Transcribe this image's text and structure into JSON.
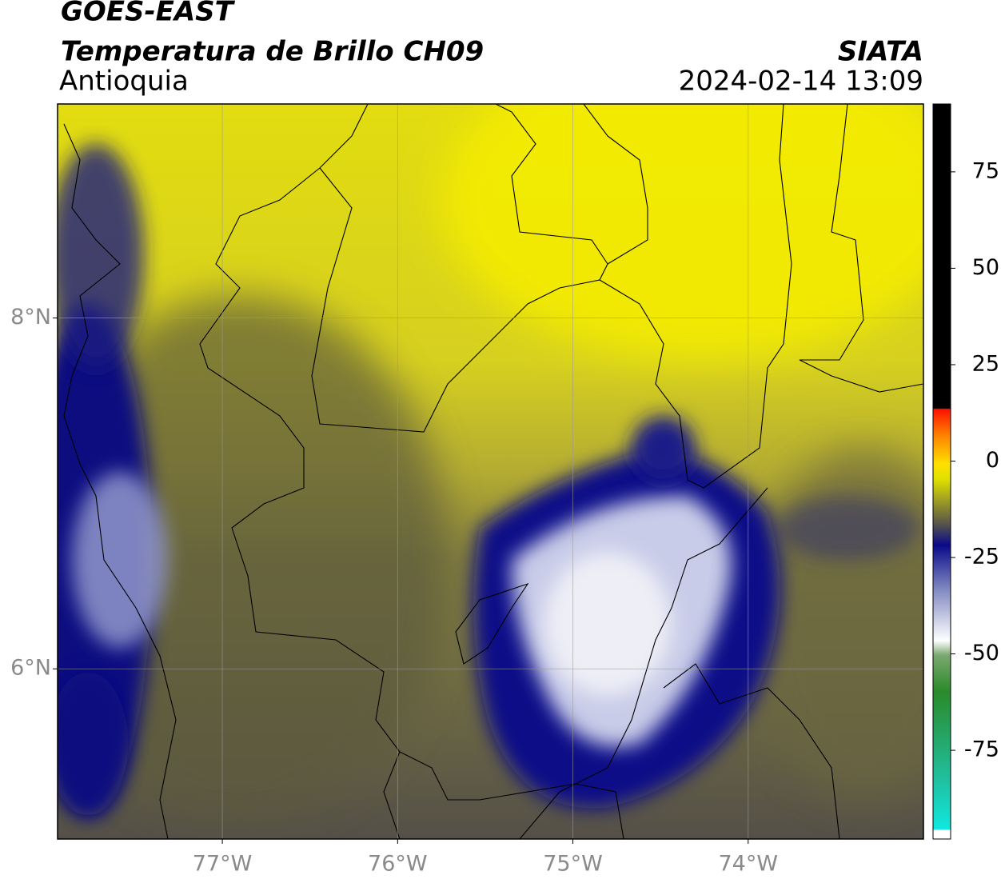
{
  "header": {
    "title": "GOES-EAST",
    "subtitle": "Temperatura de Brillo CH09",
    "region": "Antioquia",
    "source": "SIATA",
    "datetime": "2024-02-14 13:09"
  },
  "map": {
    "xlim": [
      -77.94,
      -73.0
    ],
    "ylim": [
      5.03,
      9.22
    ],
    "xticks": [
      {
        "value": -77,
        "label": "77°W"
      },
      {
        "value": -76,
        "label": "76°W"
      },
      {
        "value": -75,
        "label": "75°W"
      },
      {
        "value": -74,
        "label": "74°W"
      }
    ],
    "yticks": [
      {
        "value": 6,
        "label": "6°N"
      },
      {
        "value": 8,
        "label": "8°N"
      }
    ],
    "grid": true
  },
  "colorbar": {
    "lim": [
      -98,
      92.6
    ],
    "ticks": [
      -75,
      -50,
      -25,
      0,
      25,
      50,
      75
    ]
  }
}
